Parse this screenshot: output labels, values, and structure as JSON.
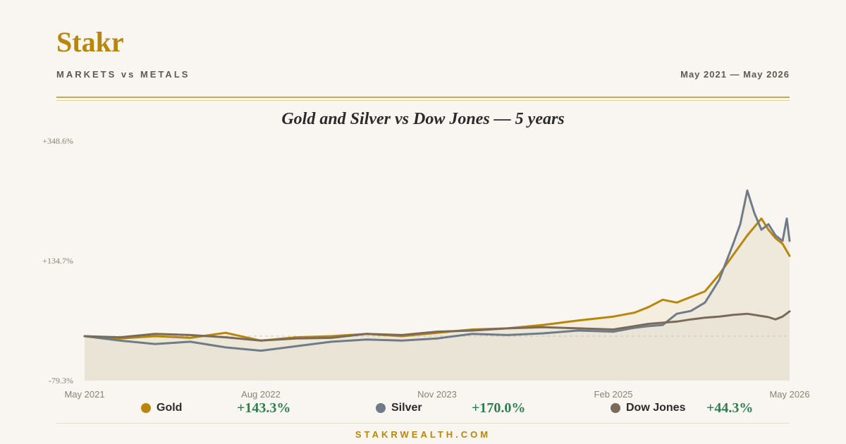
{
  "brand": "Stakr",
  "subtitle": "MARKETS vs METALS",
  "date_range": "May 2021 — May 2026",
  "footer": "STAKRWEALTH.COM",
  "colors": {
    "gold": "#b8860b",
    "silver": "#6e7b89",
    "dow": "#7a6a5a",
    "positive": "#2e7d4f"
  },
  "legend": [
    {
      "name": "Gold",
      "value": "+143.3%"
    },
    {
      "name": "Silver",
      "value": "+170.0%"
    },
    {
      "name": "Dow Jones",
      "value": "+44.3%"
    }
  ],
  "chart_data": {
    "type": "line",
    "title": "Gold and Silver vs Dow Jones — 5 years",
    "xlabel": "",
    "ylabel": "",
    "ylim": [
      -79.3,
      348.6
    ],
    "y_tick_labels": [
      "+348.6%",
      "+134.7%",
      "-79.3%"
    ],
    "y_ticks": [
      348.6,
      134.7,
      -79.3
    ],
    "x_tick_labels": [
      "May 2021",
      "Aug 2022",
      "Nov 2023",
      "Feb 2025",
      "May 2026"
    ],
    "x_ticks": [
      0,
      1.25,
      2.5,
      3.75,
      5
    ],
    "xlim": [
      0,
      5
    ],
    "baseline": 0,
    "grid": false,
    "legend_position": "bottom",
    "series": [
      {
        "name": "Gold",
        "color": "#b8860b",
        "x": [
          0,
          0.25,
          0.5,
          0.75,
          1,
          1.25,
          1.5,
          1.75,
          2,
          2.25,
          2.5,
          2.75,
          3,
          3.25,
          3.5,
          3.75,
          3.9,
          4,
          4.1,
          4.2,
          4.3,
          4.4,
          4.5,
          4.6,
          4.7,
          4.8,
          4.85,
          4.9,
          4.95,
          5
        ],
        "values": [
          0,
          -4,
          0,
          -3,
          6,
          -8,
          -2,
          0,
          4,
          0,
          6,
          12,
          14,
          20,
          28,
          35,
          42,
          52,
          65,
          60,
          70,
          80,
          110,
          145,
          180,
          210,
          190,
          175,
          165,
          143.3
        ]
      },
      {
        "name": "Silver",
        "color": "#6e7b89",
        "x": [
          0,
          0.25,
          0.5,
          0.75,
          1,
          1.25,
          1.5,
          1.75,
          2,
          2.25,
          2.5,
          2.75,
          3,
          3.25,
          3.5,
          3.75,
          3.9,
          4,
          4.1,
          4.2,
          4.3,
          4.4,
          4.5,
          4.6,
          4.65,
          4.7,
          4.75,
          4.8,
          4.85,
          4.9,
          4.95,
          4.98,
          5
        ],
        "values": [
          0,
          -8,
          -14,
          -10,
          -20,
          -26,
          -18,
          -10,
          -6,
          -8,
          -4,
          4,
          2,
          5,
          10,
          8,
          15,
          18,
          20,
          40,
          45,
          60,
          100,
          165,
          200,
          260,
          220,
          190,
          200,
          180,
          170,
          210,
          170.0
        ]
      },
      {
        "name": "Dow Jones",
        "color": "#7a6a5a",
        "x": [
          0,
          0.25,
          0.5,
          0.75,
          1,
          1.25,
          1.5,
          1.75,
          2,
          2.25,
          2.5,
          2.75,
          3,
          3.25,
          3.5,
          3.75,
          3.9,
          4,
          4.1,
          4.2,
          4.3,
          4.4,
          4.5,
          4.6,
          4.7,
          4.8,
          4.85,
          4.9,
          4.95,
          5
        ],
        "values": [
          0,
          -2,
          4,
          2,
          -2,
          -8,
          -4,
          -3,
          4,
          2,
          8,
          10,
          14,
          16,
          14,
          12,
          18,
          22,
          24,
          26,
          30,
          33,
          35,
          38,
          40,
          36,
          34,
          30,
          35,
          44.3
        ]
      }
    ]
  }
}
